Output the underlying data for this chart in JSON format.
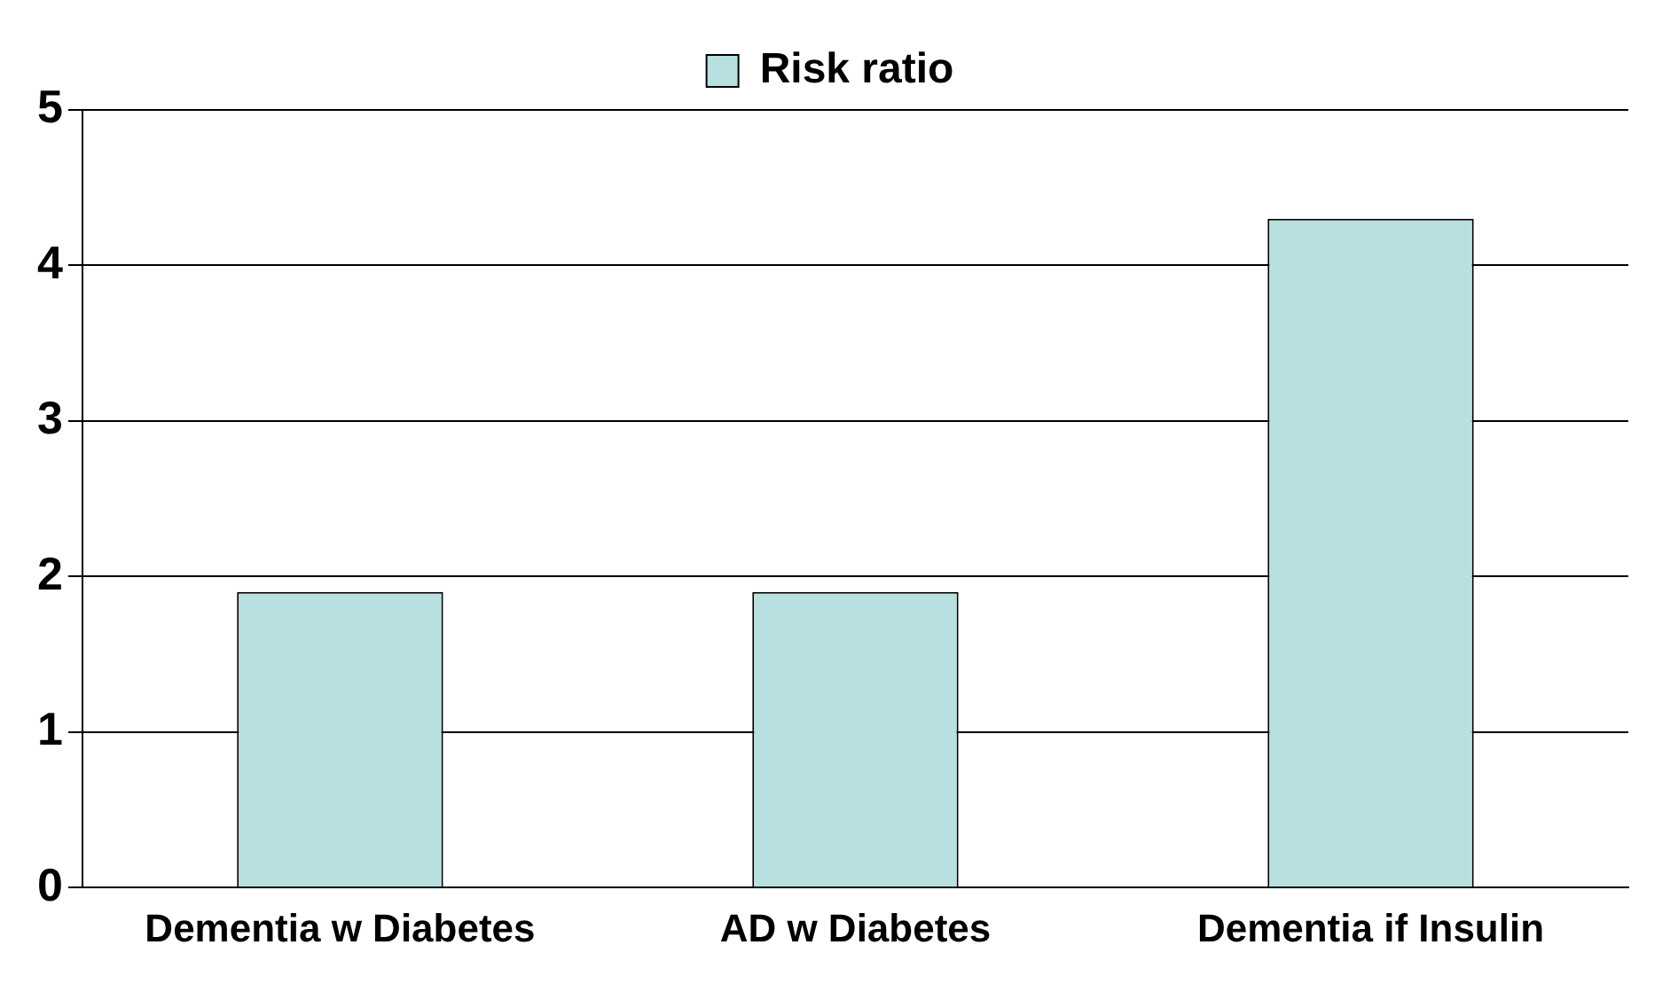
{
  "chart_data": {
    "type": "bar",
    "categories": [
      "Dementia w Diabetes",
      "AD w Diabetes",
      "Dementia if Insulin"
    ],
    "series": [
      {
        "name": "Risk ratio",
        "color": "#b8e0e0",
        "values": [
          1.9,
          1.9,
          4.3
        ]
      }
    ],
    "ylim": [
      0,
      5
    ],
    "yticks": [
      0,
      1,
      2,
      3,
      4,
      5
    ],
    "grid": "y",
    "legend": "top"
  }
}
